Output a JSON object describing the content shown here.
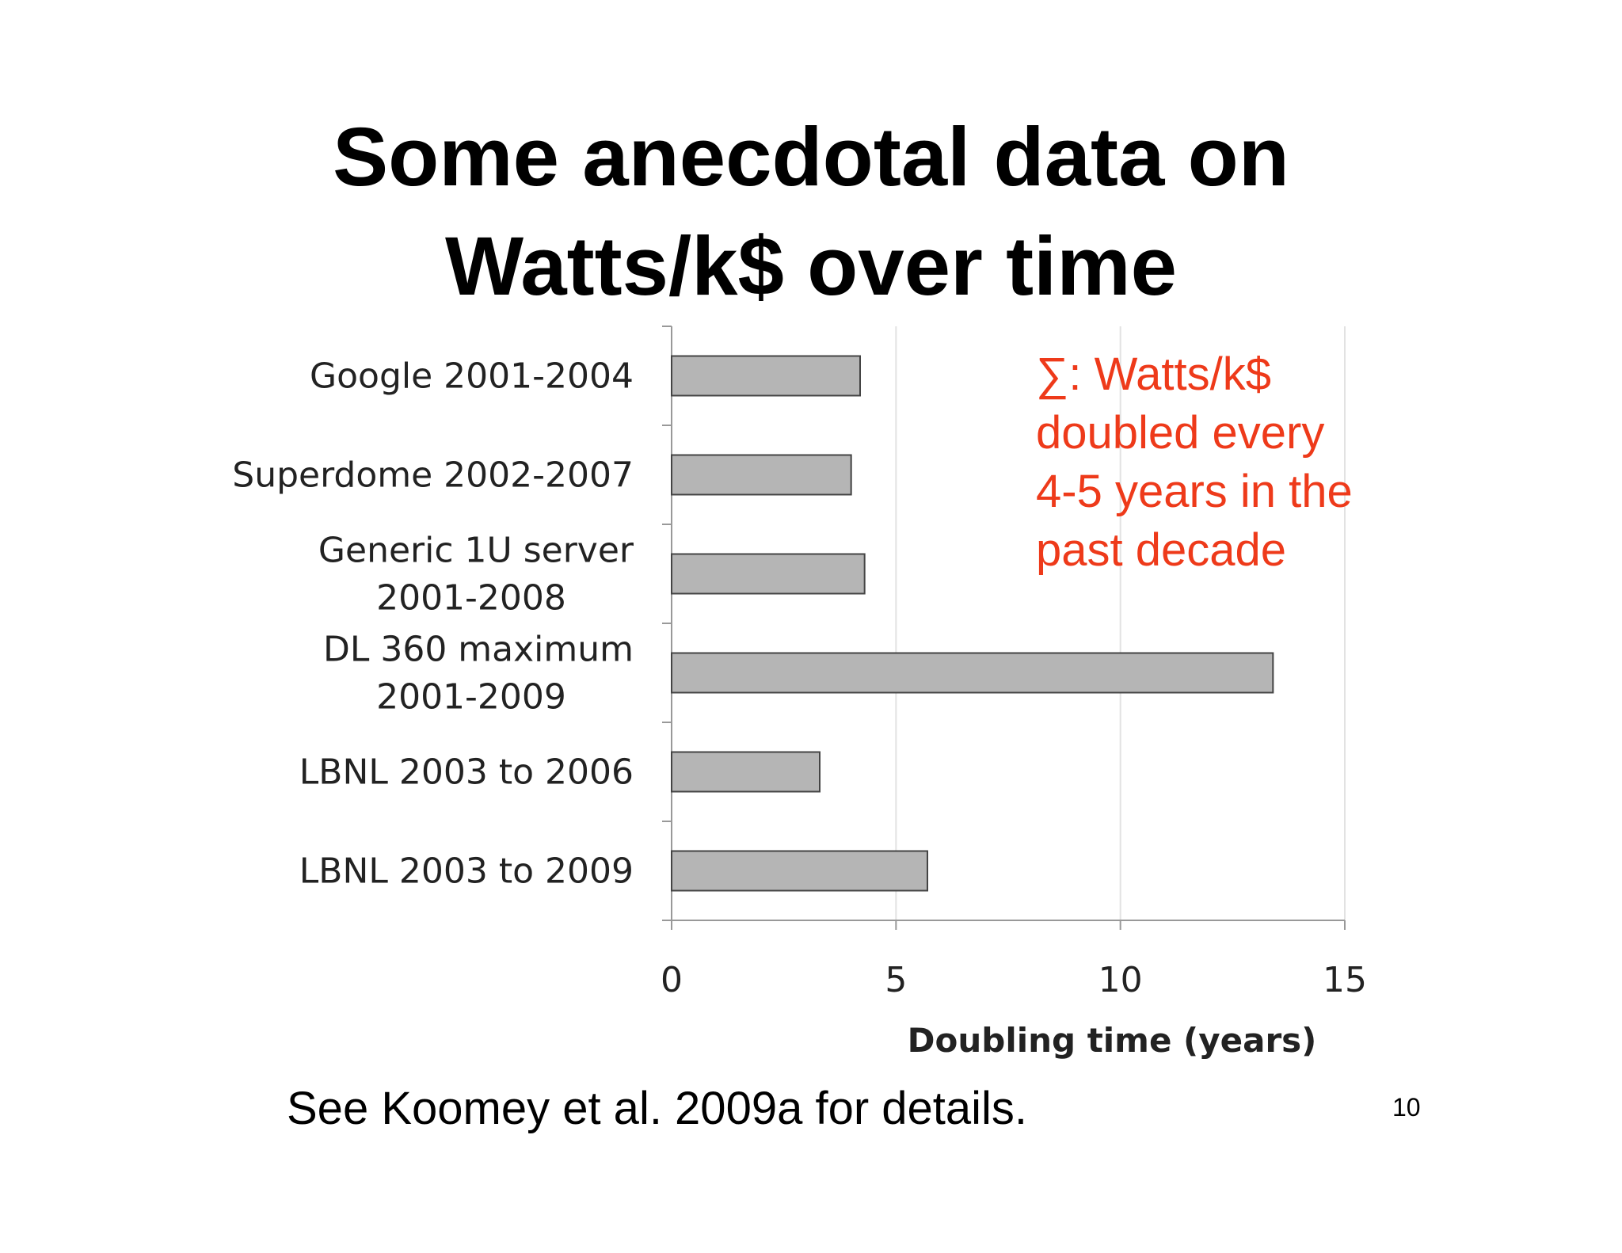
{
  "slide": {
    "title_line1": "Some anecdotal data on",
    "title_line2": "Watts/k$ over time",
    "callout_lines": [
      "∑: Watts/k$",
      "doubled every",
      "4-5 years in the",
      "past decade"
    ],
    "callout_color": "#ee3a1a",
    "footnote": "See Koomey et al. 2009a for details.",
    "page_number": "10"
  },
  "chart_data": {
    "type": "bar",
    "orientation": "horizontal",
    "categories": [
      [
        "Google 2001-2004"
      ],
      [
        "Superdome 2002-2007"
      ],
      [
        "Generic 1U server",
        "2001-2008"
      ],
      [
        "DL 360 maximum",
        "2001-2009"
      ],
      [
        "LBNL 2003 to 2006"
      ],
      [
        "LBNL 2003 to 2009"
      ]
    ],
    "values": [
      4.2,
      4.0,
      4.3,
      13.4,
      3.3,
      5.7
    ],
    "xlabel": "Doubling time (years)",
    "xlim": [
      0,
      15
    ],
    "xticks": [
      0,
      5,
      10,
      15
    ],
    "grid": "vertical",
    "bar_color": "#b5b5b5",
    "bar_stroke": "#444444",
    "grid_color": "#e2e2e2"
  }
}
